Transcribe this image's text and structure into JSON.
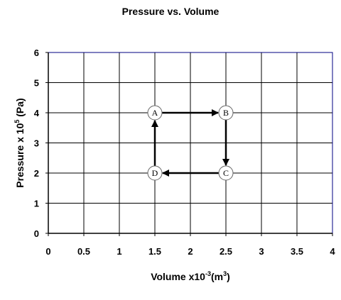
{
  "chart_data": {
    "type": "scatter",
    "title": "Pressure vs. Volume",
    "xlabel": {
      "base": "Volume x10",
      "exp": "-3",
      "unit_pre": "(m",
      "unit_exp": "3",
      "unit_post": ")"
    },
    "ylabel": {
      "base": "Pressure x 10",
      "exp": "5",
      "unit": " (Pa)"
    },
    "xlim": [
      0,
      4
    ],
    "ylim": [
      0,
      6
    ],
    "x_ticks": [
      "0",
      "0.5",
      "1",
      "1.5",
      "2",
      "2.5",
      "3",
      "3.5",
      "4"
    ],
    "y_ticks": [
      "0",
      "1",
      "2",
      "3",
      "4",
      "5",
      "6"
    ],
    "grid": true,
    "points": [
      {
        "label": "A",
        "x": 1.5,
        "y": 4
      },
      {
        "label": "B",
        "x": 2.5,
        "y": 4
      },
      {
        "label": "C",
        "x": 2.5,
        "y": 2
      },
      {
        "label": "D",
        "x": 1.5,
        "y": 2
      }
    ],
    "arrows": [
      {
        "from": "A",
        "to": "B"
      },
      {
        "from": "B",
        "to": "C"
      },
      {
        "from": "C",
        "to": "D"
      },
      {
        "from": "D",
        "to": "A"
      }
    ],
    "colors": {
      "plot_border": "#000080",
      "grid": "#000000",
      "arrow": "#000000",
      "marker_fill": "#ffffff"
    }
  }
}
